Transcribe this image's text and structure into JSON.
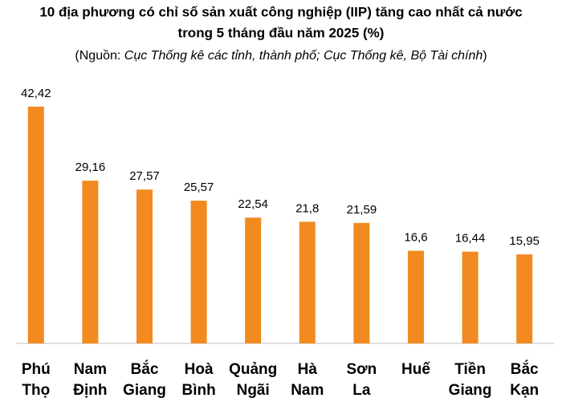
{
  "chart_data": {
    "type": "bar",
    "title": [
      "10 địa phương có chỉ số sản xuất công nghiệp (IIP) tăng cao nhất cả nước",
      "trong 5 tháng đầu năm 2025 (%)"
    ],
    "subtitle": [
      "(Nguồn: ",
      "Cục Thống kê các tỉnh, thành phố; Cục Thống kê, Bộ Tài chính",
      ")"
    ],
    "categories": [
      [
        "Phú",
        "Thọ"
      ],
      [
        "Nam",
        "Định"
      ],
      [
        "Bắc",
        "Giang"
      ],
      [
        "Hoà",
        "Bình"
      ],
      [
        "Quảng",
        "Ngãi"
      ],
      [
        "Hà",
        "Nam"
      ],
      [
        "Sơn",
        "La"
      ],
      [
        "Huế"
      ],
      [
        "Tiền",
        "Giang"
      ],
      [
        "Bắc",
        "Kạn"
      ]
    ],
    "values": [
      42.42,
      29.16,
      27.57,
      25.57,
      22.54,
      21.8,
      21.59,
      16.6,
      16.44,
      15.95
    ],
    "value_labels": [
      "42,42",
      "29,16",
      "27,57",
      "25,57",
      "22,54",
      "21,8",
      "21,59",
      "16,6",
      "16,44",
      "15,95"
    ],
    "color": "#f28a1f",
    "ylim": [
      0,
      45
    ]
  }
}
